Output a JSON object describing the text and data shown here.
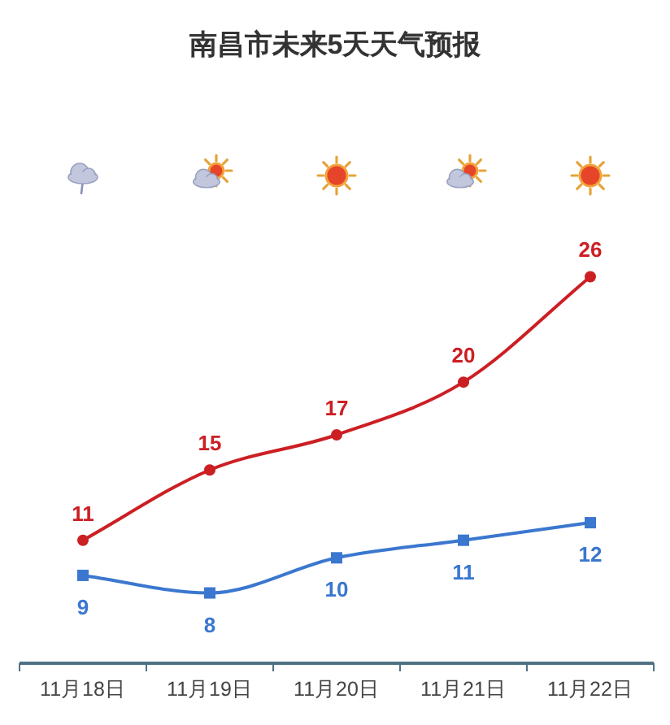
{
  "chart_data": {
    "type": "line",
    "title": "南昌市未来5天天气预报",
    "categories": [
      "11月18日",
      "11月19日",
      "11月20日",
      "11月21日",
      "11月22日"
    ],
    "series": [
      {
        "color": "#cc1f24",
        "values": [
          11,
          15,
          17,
          20,
          26
        ],
        "marker": "circle"
      },
      {
        "color": "#3b77cf",
        "values": [
          9,
          8,
          10,
          11,
          12
        ],
        "marker": "square"
      }
    ],
    "data_labels": true
  }
}
